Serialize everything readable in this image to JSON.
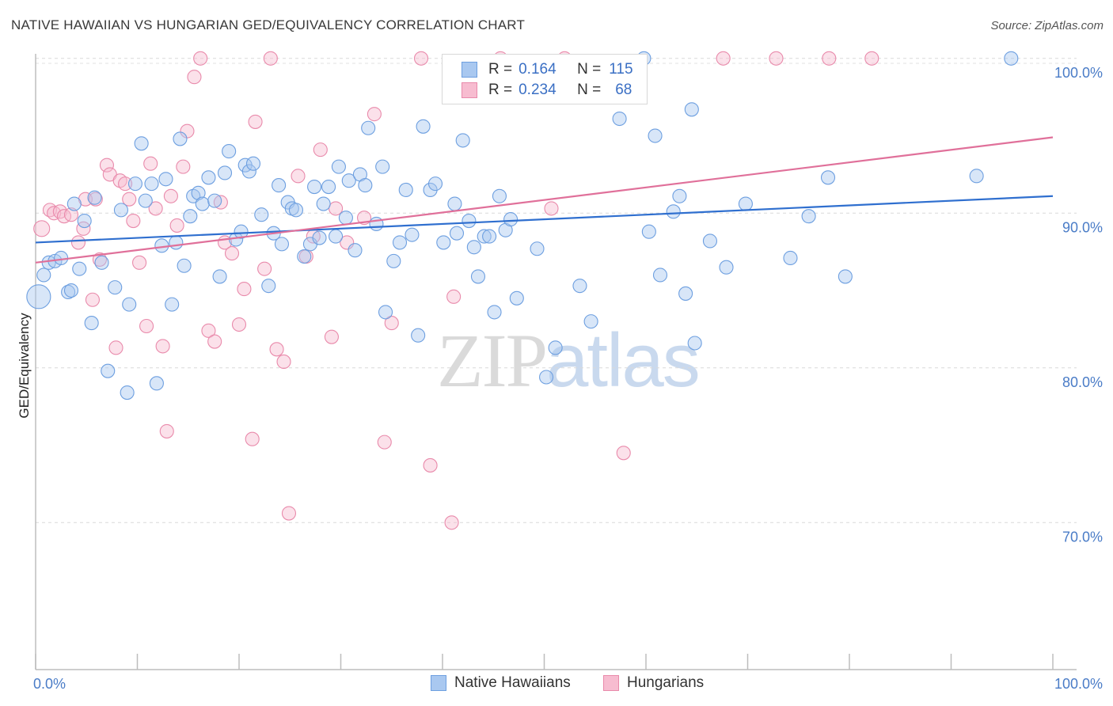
{
  "title": "NATIVE HAWAIIAN VS HUNGARIAN GED/EQUIVALENCY CORRELATION CHART",
  "source": "Source: ZipAtlas.com",
  "watermark": {
    "zip": "ZIP",
    "atlas": "atlas"
  },
  "legend": {
    "rows": [
      {
        "r_label": "R =",
        "r_value": "0.164",
        "n_label": "N =",
        "n_value": "115",
        "color": "#a9c8f0",
        "border": "#6d9fe0"
      },
      {
        "r_label": "R =",
        "r_value": "0.234",
        "n_label": "N =",
        "n_value": "68",
        "color": "#f7bcd0",
        "border": "#e98aab"
      }
    ]
  },
  "bottom_legend": [
    {
      "label": "Native Hawaiians",
      "color": "#a9c8f0",
      "border": "#6d9fe0"
    },
    {
      "label": "Hungarians",
      "color": "#f7bcd0",
      "border": "#e98aab"
    }
  ],
  "chart_data": {
    "type": "scatter",
    "title": "NATIVE HAWAIIAN VS HUNGARIAN GED/EQUIVALENCY CORRELATION CHART",
    "xlabel": "",
    "ylabel": "GED/Equivalency",
    "xlim": [
      0,
      100
    ],
    "ylim": [
      60.5,
      100.5
    ],
    "x_tick_labels": [
      "0.0%",
      "100.0%"
    ],
    "y_ticks": [
      {
        "value": 100,
        "label": "100.0%"
      },
      {
        "value": 90,
        "label": "90.0%"
      },
      {
        "value": 80,
        "label": "80.0%"
      },
      {
        "value": 70,
        "label": "70.0%"
      }
    ],
    "grid": true,
    "legend_position": "top-center",
    "series": [
      {
        "name": "Native Hawaiians",
        "color": "#6d9fe0",
        "fill": "#a9c8f0",
        "trend": {
          "x": [
            0,
            100
          ],
          "y": [
            88.1,
            91.1
          ]
        },
        "points": [
          [
            0.3,
            84.6
          ],
          [
            0.8,
            86.0
          ],
          [
            1.3,
            86.8
          ],
          [
            1.9,
            86.9
          ],
          [
            2.5,
            87.1
          ],
          [
            3.2,
            84.9
          ],
          [
            3.5,
            85.0
          ],
          [
            3.8,
            90.6
          ],
          [
            4.3,
            86.4
          ],
          [
            4.8,
            89.5
          ],
          [
            5.5,
            82.9
          ],
          [
            5.8,
            91.0
          ],
          [
            6.5,
            86.8
          ],
          [
            7.1,
            79.8
          ],
          [
            7.8,
            85.2
          ],
          [
            8.4,
            90.2
          ],
          [
            9.0,
            78.4
          ],
          [
            9.2,
            84.1
          ],
          [
            9.8,
            91.9
          ],
          [
            10.4,
            94.5
          ],
          [
            10.8,
            90.8
          ],
          [
            11.4,
            91.9
          ],
          [
            11.9,
            79.0
          ],
          [
            12.4,
            87.9
          ],
          [
            12.8,
            92.2
          ],
          [
            13.4,
            84.1
          ],
          [
            13.8,
            88.1
          ],
          [
            14.2,
            94.8
          ],
          [
            14.6,
            86.6
          ],
          [
            15.2,
            89.8
          ],
          [
            15.5,
            91.1
          ],
          [
            16.0,
            91.3
          ],
          [
            16.4,
            90.6
          ],
          [
            17.0,
            92.3
          ],
          [
            17.6,
            90.8
          ],
          [
            18.1,
            85.9
          ],
          [
            18.6,
            92.6
          ],
          [
            19.0,
            94.0
          ],
          [
            19.7,
            88.3
          ],
          [
            20.2,
            88.8
          ],
          [
            20.6,
            93.1
          ],
          [
            21.0,
            92.7
          ],
          [
            21.4,
            93.2
          ],
          [
            22.2,
            89.9
          ],
          [
            22.9,
            85.3
          ],
          [
            23.4,
            88.7
          ],
          [
            23.9,
            91.8
          ],
          [
            24.2,
            88.0
          ],
          [
            24.8,
            90.7
          ],
          [
            25.2,
            90.3
          ],
          [
            25.6,
            90.2
          ],
          [
            26.4,
            87.2
          ],
          [
            27.0,
            88.0
          ],
          [
            27.4,
            91.7
          ],
          [
            27.9,
            88.4
          ],
          [
            28.3,
            90.6
          ],
          [
            28.8,
            91.7
          ],
          [
            29.5,
            88.5
          ],
          [
            29.8,
            93.0
          ],
          [
            30.5,
            89.7
          ],
          [
            30.8,
            92.1
          ],
          [
            31.4,
            87.6
          ],
          [
            31.9,
            92.5
          ],
          [
            32.4,
            91.8
          ],
          [
            32.7,
            95.5
          ],
          [
            33.5,
            89.3
          ],
          [
            34.1,
            93.0
          ],
          [
            34.4,
            83.6
          ],
          [
            35.2,
            86.9
          ],
          [
            35.8,
            88.1
          ],
          [
            36.4,
            91.5
          ],
          [
            37.0,
            88.6
          ],
          [
            37.6,
            82.1
          ],
          [
            38.1,
            95.6
          ],
          [
            38.8,
            91.5
          ],
          [
            39.3,
            91.9
          ],
          [
            40.1,
            88.1
          ],
          [
            41.2,
            90.6
          ],
          [
            41.4,
            88.7
          ],
          [
            42.0,
            94.7
          ],
          [
            42.6,
            89.5
          ],
          [
            43.1,
            87.8
          ],
          [
            43.5,
            85.9
          ],
          [
            44.1,
            88.5
          ],
          [
            44.6,
            88.5
          ],
          [
            45.1,
            83.6
          ],
          [
            45.6,
            91.1
          ],
          [
            46.2,
            88.9
          ],
          [
            46.7,
            89.6
          ],
          [
            47.3,
            84.5
          ],
          [
            49.3,
            87.7
          ],
          [
            50.2,
            79.4
          ],
          [
            51.1,
            81.3
          ],
          [
            53.5,
            85.3
          ],
          [
            54.6,
            83.0
          ],
          [
            57.4,
            96.1
          ],
          [
            59.8,
            100.0
          ],
          [
            60.3,
            88.8
          ],
          [
            60.9,
            95.0
          ],
          [
            61.4,
            86.0
          ],
          [
            62.7,
            90.1
          ],
          [
            63.3,
            91.1
          ],
          [
            63.9,
            84.8
          ],
          [
            64.5,
            96.7
          ],
          [
            64.8,
            81.6
          ],
          [
            66.3,
            88.2
          ],
          [
            67.9,
            86.5
          ],
          [
            69.8,
            90.6
          ],
          [
            74.2,
            87.1
          ],
          [
            76.0,
            89.8
          ],
          [
            77.9,
            92.3
          ],
          [
            79.6,
            85.9
          ],
          [
            92.5,
            92.4
          ],
          [
            95.9,
            100.0
          ]
        ]
      },
      {
        "name": "Hungarians",
        "color": "#e98aab",
        "fill": "#f7bcd0",
        "trend": {
          "x": [
            0,
            100
          ],
          "y": [
            86.8,
            94.9
          ]
        },
        "points": [
          [
            0.6,
            89.0
          ],
          [
            1.4,
            90.2
          ],
          [
            1.8,
            90.0
          ],
          [
            2.4,
            90.1
          ],
          [
            2.8,
            89.8
          ],
          [
            3.5,
            89.9
          ],
          [
            4.2,
            88.1
          ],
          [
            4.7,
            89.0
          ],
          [
            4.9,
            90.9
          ],
          [
            5.6,
            84.4
          ],
          [
            5.9,
            90.9
          ],
          [
            6.3,
            87.0
          ],
          [
            7.0,
            93.1
          ],
          [
            7.3,
            92.5
          ],
          [
            7.9,
            81.3
          ],
          [
            8.3,
            92.1
          ],
          [
            8.8,
            91.9
          ],
          [
            9.2,
            90.9
          ],
          [
            9.6,
            89.5
          ],
          [
            10.2,
            86.8
          ],
          [
            10.9,
            82.7
          ],
          [
            11.3,
            93.2
          ],
          [
            11.8,
            90.3
          ],
          [
            12.5,
            81.4
          ],
          [
            12.9,
            75.9
          ],
          [
            13.3,
            91.1
          ],
          [
            13.9,
            89.2
          ],
          [
            14.5,
            93.0
          ],
          [
            14.9,
            95.3
          ],
          [
            15.6,
            98.8
          ],
          [
            16.2,
            100.0
          ],
          [
            17.0,
            82.4
          ],
          [
            17.6,
            81.7
          ],
          [
            18.2,
            90.7
          ],
          [
            18.6,
            88.1
          ],
          [
            19.3,
            87.4
          ],
          [
            20.0,
            82.8
          ],
          [
            20.5,
            85.1
          ],
          [
            21.3,
            75.4
          ],
          [
            21.6,
            95.9
          ],
          [
            22.5,
            86.4
          ],
          [
            23.1,
            100.0
          ],
          [
            23.7,
            81.2
          ],
          [
            24.4,
            80.4
          ],
          [
            24.9,
            70.6
          ],
          [
            25.8,
            92.4
          ],
          [
            26.6,
            87.2
          ],
          [
            27.3,
            88.5
          ],
          [
            28.0,
            94.1
          ],
          [
            29.1,
            82.0
          ],
          [
            29.5,
            90.3
          ],
          [
            30.6,
            88.1
          ],
          [
            32.3,
            89.7
          ],
          [
            33.3,
            96.4
          ],
          [
            34.3,
            75.2
          ],
          [
            35.0,
            82.9
          ],
          [
            37.9,
            100.0
          ],
          [
            38.8,
            73.7
          ],
          [
            40.9,
            70.0
          ],
          [
            41.1,
            84.6
          ],
          [
            45.7,
            100.0
          ],
          [
            50.7,
            90.3
          ],
          [
            52.0,
            100.0
          ],
          [
            57.8,
            74.5
          ],
          [
            67.6,
            100.0
          ],
          [
            72.8,
            100.0
          ],
          [
            78.0,
            100.0
          ],
          [
            82.2,
            100.0
          ]
        ]
      }
    ]
  }
}
